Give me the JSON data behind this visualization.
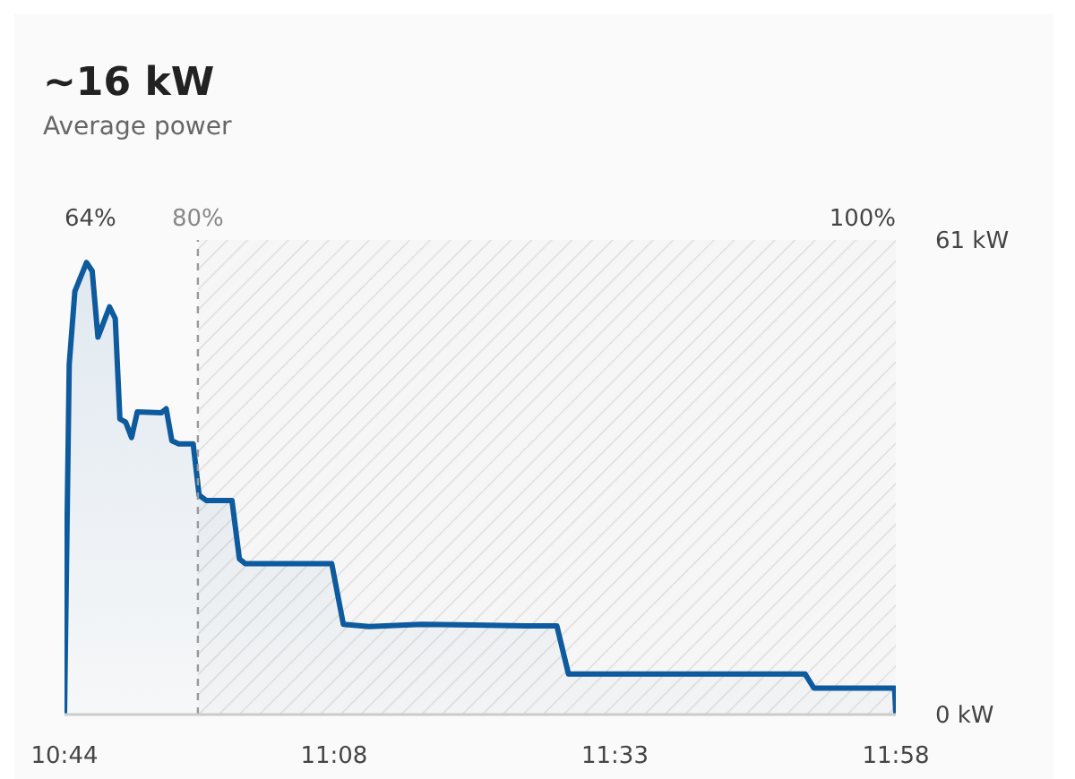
{
  "chart_data": {
    "type": "area",
    "title": "~16 kW",
    "subtitle": "Average power",
    "x": [
      10.7333,
      10.7403,
      10.7487,
      10.766,
      10.7744,
      10.7829,
      10.8001,
      10.8086,
      10.8155,
      10.824,
      10.8328,
      10.8413,
      10.8772,
      10.8842,
      10.8926,
      10.9029,
      10.9242,
      10.933,
      10.944,
      10.9818,
      10.9928,
      11.0013,
      11.1298,
      11.147,
      11.1855,
      11.2626,
      11.3397,
      11.4168,
      11.4638,
      11.481,
      11.8322,
      11.8451,
      11.9648,
      11.9667
    ],
    "series": [
      {
        "color": "#0d5a9e",
        "values": [
          0,
          45,
          54.4,
          58.1,
          57,
          48.5,
          52.4,
          50.9,
          38,
          37.6,
          35.6,
          38.9,
          38.8,
          39.3,
          35.2,
          34.8,
          34.8,
          28.2,
          27.5,
          27.5,
          20,
          19.4,
          19.4,
          11.6,
          11.3,
          11.6,
          11.5,
          11.4,
          11.4,
          5.2,
          5.2,
          3.4,
          3.4,
          0
        ]
      }
    ],
    "xlim": [
      10.7333,
      11.9667
    ],
    "xticks": [
      {
        "value": 10.7333,
        "label": "10:44"
      },
      {
        "value": 11.1333,
        "label": "11:08"
      },
      {
        "value": 11.55,
        "label": "11:33"
      },
      {
        "value": 11.9667,
        "label": "11:58"
      }
    ],
    "ylim": [
      0,
      61
    ],
    "yticks": [
      {
        "value": 0,
        "label": "0 kW"
      },
      {
        "value": 61,
        "label": "61 kW"
      }
    ],
    "ref_lines": [
      {
        "axis": "x",
        "value": 10.9312,
        "color": "#999999",
        "line_style": "dashed"
      }
    ],
    "bands": [
      {
        "axis": "x",
        "from": 10.9312,
        "to": 11.9667,
        "color": "#dddddd"
      }
    ],
    "annotations": [
      "64%",
      "80%",
      "100%"
    ]
  }
}
